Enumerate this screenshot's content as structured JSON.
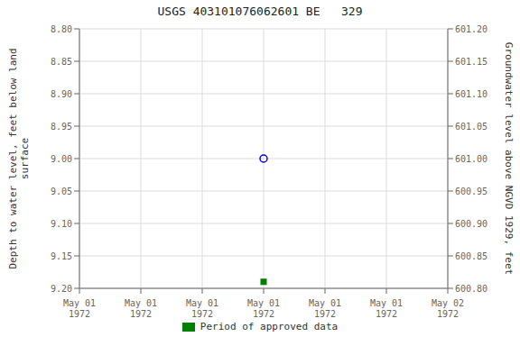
{
  "chart_data": {
    "type": "scatter",
    "title": "USGS 403101076062601 BE   329",
    "y_label": "Depth to water level, feet below land\n surface",
    "y2_label": "Groundwater level above NGVD 1929, feet",
    "categories": [
      "May 01\n1972",
      "May 01\n1972",
      "May 01\n1972",
      "May 01\n1972",
      "May 01\n1972",
      "May 01\n1972",
      "May 02\n1972"
    ],
    "series": [
      {
        "color": "#0000ff",
        "marker": "circle",
        "values": [
          null,
          null,
          null,
          9.0,
          null,
          null,
          null
        ]
      },
      {
        "name": "Period of approved data",
        "color": "#008000",
        "marker": "square",
        "values": [
          null,
          null,
          null,
          9.19,
          null,
          null,
          null
        ]
      }
    ],
    "ylim": [
      9.2,
      8.8
    ],
    "yticks": [
      {
        "value": 8.8,
        "label": "8.80"
      },
      8.85,
      {
        "value": 8.9,
        "label": "8.90"
      },
      8.95,
      {
        "value": 9.0,
        "label": "9.00"
      },
      9.05,
      {
        "value": 9.1,
        "label": "9.10"
      },
      9.15,
      {
        "value": 9.2,
        "label": "9.20"
      }
    ],
    "y2lim": [
      600.8,
      601.2
    ],
    "y2ticks": [
      {
        "value": 601.2,
        "label": "601.20"
      },
      601.15,
      {
        "value": 601.1,
        "label": "601.10"
      },
      601.05,
      {
        "value": 601.0,
        "label": "601.00"
      },
      600.95,
      {
        "value": 600.9,
        "label": "600.90"
      },
      600.85,
      {
        "value": 600.8,
        "label": "600.80"
      }
    ],
    "grid": true
  }
}
